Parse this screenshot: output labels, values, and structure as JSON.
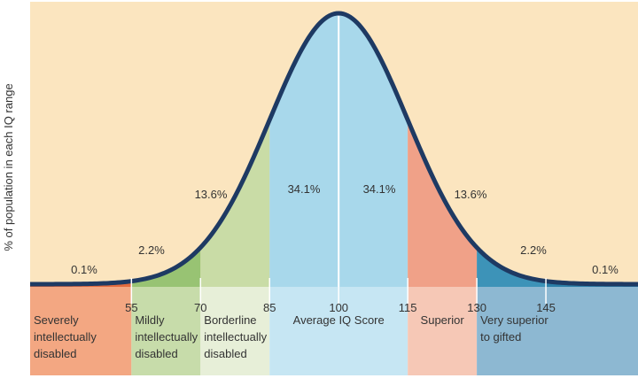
{
  "chart_data": {
    "type": "area",
    "title": "",
    "ylabel": "% of population in each IQ range",
    "xlabel": "",
    "xlim": [
      33,
      165
    ],
    "x_ticks": [
      55,
      70,
      85,
      100,
      115,
      130,
      145
    ],
    "x_tick_labels": [
      "55",
      "70",
      "85",
      "100",
      "115",
      "130",
      "145"
    ],
    "distribution": {
      "mean": 100,
      "sd": 15
    },
    "bands": [
      {
        "from": 33,
        "to": 55,
        "percent_label": "0.1%",
        "category": "Severely intellectually disabled",
        "color": "#e36b3e",
        "label_color": "#f3a782"
      },
      {
        "from": 55,
        "to": 70,
        "percent_label": "2.2%",
        "category": "Mildly intellectually disabled",
        "color": "#98c373",
        "label_color": "#c7dcaa"
      },
      {
        "from": 70,
        "to": 85,
        "percent_label": "13.6%",
        "category": "Borderline intellectually disabled",
        "color": "#c9dca6",
        "label_color": "#e7efd8"
      },
      {
        "from": 85,
        "to": 100,
        "percent_label": "34.1%",
        "category": "",
        "color": "#a8d8eb",
        "label_color": "#c6e6f3"
      },
      {
        "from": 100,
        "to": 115,
        "percent_label": "34.1%",
        "category": "",
        "color": "#a8d8eb",
        "label_color": "#c6e6f3"
      },
      {
        "from": 115,
        "to": 130,
        "percent_label": "13.6%",
        "category": "Superior",
        "color": "#f0a188",
        "label_color": "#f6c8b6"
      },
      {
        "from": 130,
        "to": 145,
        "percent_label": "2.2%",
        "category": "Very superior to gifted",
        "color": "#3d93b8",
        "label_color": "#8db8d2"
      },
      {
        "from": 145,
        "to": 165,
        "percent_label": "0.1%",
        "category": "",
        "color": "#2b7fa8",
        "label_color": "#8db8d2"
      }
    ],
    "category_text": {
      "severe": [
        "Severely",
        "intellectually",
        "disabled"
      ],
      "mild": [
        "Mildly",
        "intellectually",
        "disabled"
      ],
      "borderline": [
        "Borderline",
        "intellectually",
        "disabled"
      ],
      "average": [
        "Average IQ Score"
      ],
      "superior": [
        "Superior"
      ],
      "very_superior": [
        "Very superior",
        "to gifted"
      ]
    },
    "colors": {
      "background": "#fbe5bf",
      "curve": "#1e3a63",
      "axis_text": "#333333"
    }
  }
}
